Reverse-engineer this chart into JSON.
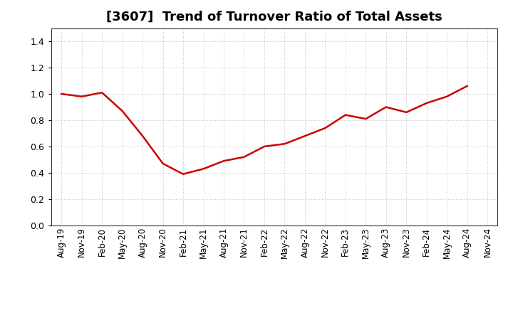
{
  "title": "[3607]  Trend of Turnover Ratio of Total Assets",
  "title_fontsize": 13,
  "title_fontweight": "bold",
  "line_color": "#cc0000",
  "line_width": 1.8,
  "background_color": "#ffffff",
  "plot_bg_color": "#ffffff",
  "grid_color": "#bbbbbb",
  "ylim": [
    0.0,
    1.5
  ],
  "yticks": [
    0.0,
    0.2,
    0.4,
    0.6,
    0.8,
    1.0,
    1.2,
    1.4
  ],
  "values": [
    1.0,
    0.98,
    1.01,
    0.87,
    0.68,
    0.47,
    0.39,
    0.43,
    0.49,
    0.52,
    0.6,
    0.62,
    0.68,
    0.74,
    0.84,
    0.81,
    0.9,
    0.86,
    0.93,
    0.98,
    1.06,
    null
  ],
  "xtick_labels": [
    "Aug-19",
    "Nov-19",
    "Feb-20",
    "May-20",
    "Aug-20",
    "Nov-20",
    "Feb-21",
    "May-21",
    "Aug-21",
    "Nov-21",
    "Feb-22",
    "May-22",
    "Aug-22",
    "Nov-22",
    "Feb-23",
    "May-23",
    "Aug-23",
    "Nov-23",
    "Feb-24",
    "May-24",
    "Aug-24",
    "Nov-24"
  ]
}
